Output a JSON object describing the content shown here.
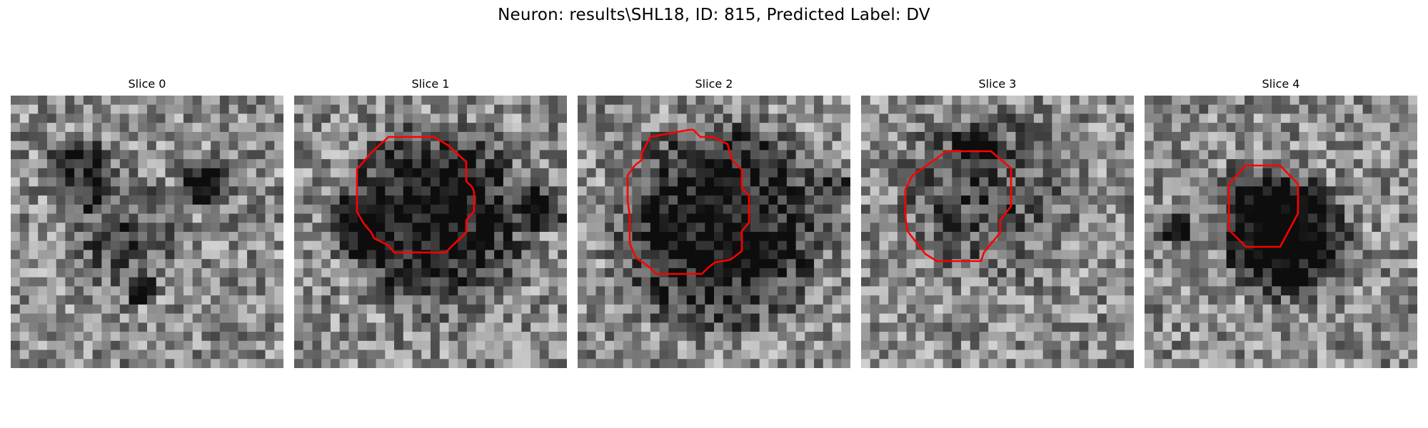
{
  "figure": {
    "suptitle": "Neuron: results\\SHL18, ID: 815, Predicted Label: DV"
  },
  "panels": [
    {
      "title": "Slice 0",
      "has_outline": false
    },
    {
      "title": "Slice 1",
      "has_outline": true
    },
    {
      "title": "Slice 2",
      "has_outline": true
    },
    {
      "title": "Slice 3",
      "has_outline": true
    },
    {
      "title": "Slice 4",
      "has_outline": true
    }
  ],
  "colors": {
    "outline": "#ff0000",
    "background": "#ffffff"
  }
}
